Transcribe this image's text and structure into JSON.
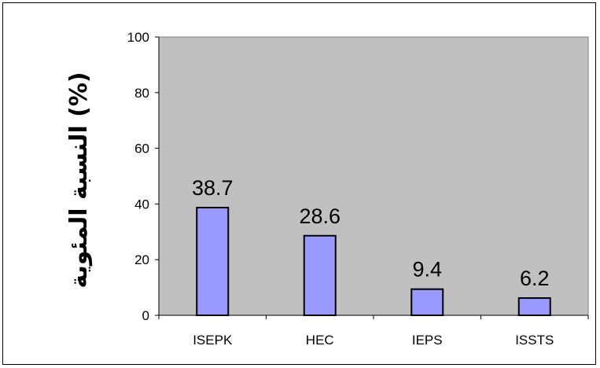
{
  "chart_data": {
    "type": "bar",
    "categories": [
      "ISEPK",
      "HEC",
      "IEPS",
      "ISSTS"
    ],
    "values": [
      38.7,
      28.6,
      9.4,
      6.2
    ],
    "value_labels": [
      "38.7",
      "28.6",
      "9.4",
      "6.2"
    ],
    "title": "",
    "xlabel": "",
    "ylabel": "النسبة المئوية (%)",
    "ylim": [
      0,
      100
    ],
    "yticks": [
      0,
      20,
      40,
      60,
      80,
      100
    ],
    "grid": false,
    "legend": "none"
  },
  "colors": {
    "plot_background": "#c0c0c0",
    "bar_fill": "#9999ff",
    "bar_stroke": "#000000",
    "axis": "#000000",
    "plot_border": "#808080"
  }
}
